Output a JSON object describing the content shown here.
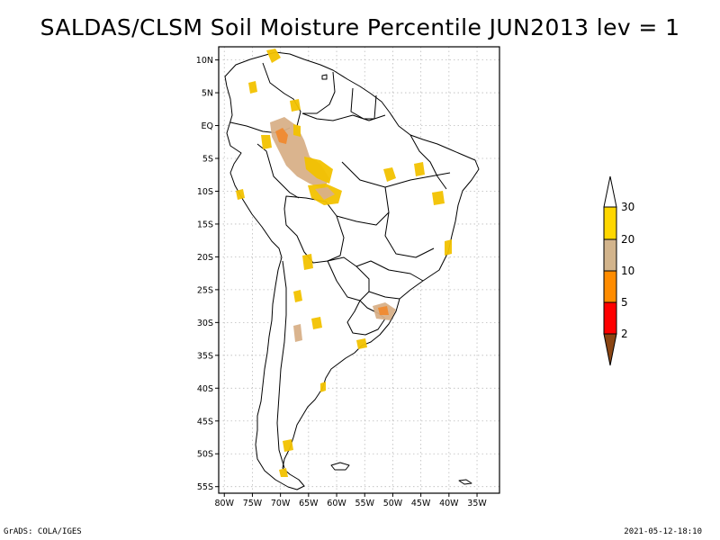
{
  "title": "SALDAS/CLSM Soil Moisture Percentile JUN2013 lev = 1",
  "footer": {
    "left": "GrADS: COLA/IGES",
    "right": "2021-05-12-18:10"
  },
  "map": {
    "lon_range": [
      -81,
      -31
    ],
    "lat_range": [
      -56,
      12
    ],
    "lat_ticks": [
      {
        "value": 10,
        "label": "10N"
      },
      {
        "value": 5,
        "label": "5N"
      },
      {
        "value": 0,
        "label": "EQ"
      },
      {
        "value": -5,
        "label": "5S"
      },
      {
        "value": -10,
        "label": "10S"
      },
      {
        "value": -15,
        "label": "15S"
      },
      {
        "value": -20,
        "label": "20S"
      },
      {
        "value": -25,
        "label": "25S"
      },
      {
        "value": -30,
        "label": "30S"
      },
      {
        "value": -35,
        "label": "35S"
      },
      {
        "value": -40,
        "label": "40S"
      },
      {
        "value": -45,
        "label": "45S"
      },
      {
        "value": -50,
        "label": "50S"
      },
      {
        "value": -55,
        "label": "55S"
      }
    ],
    "lon_ticks": [
      {
        "value": -80,
        "label": "80W"
      },
      {
        "value": -75,
        "label": "75W"
      },
      {
        "value": -70,
        "label": "70W"
      },
      {
        "value": -65,
        "label": "65W"
      },
      {
        "value": -60,
        "label": "60W"
      },
      {
        "value": -55,
        "label": "55W"
      },
      {
        "value": -50,
        "label": "50W"
      },
      {
        "value": -45,
        "label": "45W"
      },
      {
        "value": -40,
        "label": "40W"
      },
      {
        "value": -35,
        "label": "35W"
      }
    ]
  },
  "legend": {
    "levels": [
      "2",
      "5",
      "10",
      "20",
      "30"
    ],
    "colors": {
      "below_2": "#8b4513",
      "2_5": "#ff0000",
      "5_10": "#ff8c00",
      "10_20": "#d2b48c",
      "20_30": "#ffd700",
      "above_30": "#ffffff"
    }
  },
  "colors": {
    "dry_gold": "#f2c200",
    "dry_tan": "#d8b088",
    "dry_orange": "#f08a30",
    "grid": "#bbbbbb"
  }
}
